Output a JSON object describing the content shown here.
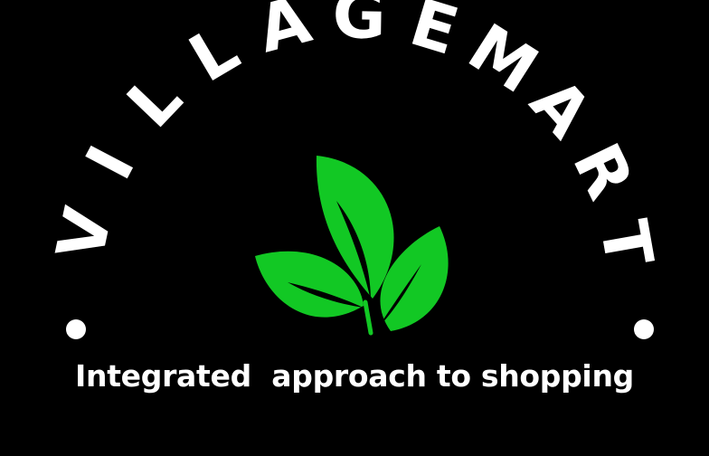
{
  "brand": {
    "name": "VILLAGEMART",
    "tagline": "Integrated  approach to shopping"
  },
  "colors": {
    "background": "#000000",
    "text": "#ffffff",
    "leaf": "#12c824",
    "leaf_vein": "#000000"
  },
  "icons": {
    "emblem": "three-leaf-sprout-icon",
    "bullets": "dot-icon"
  }
}
